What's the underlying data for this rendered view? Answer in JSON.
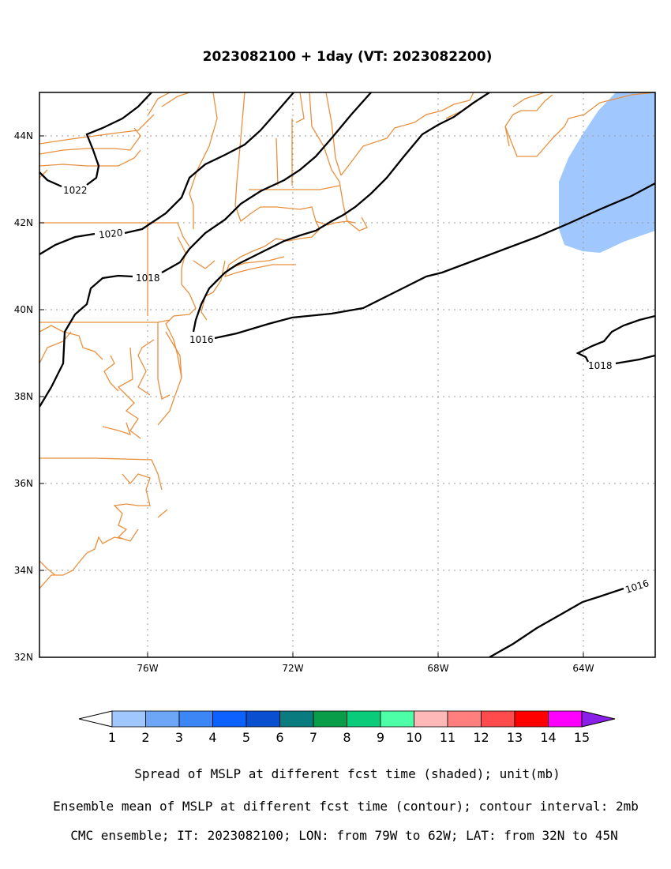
{
  "title": "2023082100 + 1day (VT: 2023082200)",
  "map": {
    "lon_range": [
      -79,
      -62
    ],
    "lat_range": [
      32,
      45
    ],
    "x_ticks": [
      "76W",
      "72W",
      "68W",
      "64W"
    ],
    "y_ticks": [
      "44N",
      "42N",
      "40N",
      "38N",
      "36N",
      "34N",
      "32N"
    ],
    "grid": true,
    "boundary_color": "#e8903e",
    "contour_color": "#000000"
  },
  "contours": [
    {
      "value": 1022,
      "label": "1022"
    },
    {
      "value": 1020,
      "label": "1020"
    },
    {
      "value": 1018,
      "label": "1018"
    },
    {
      "value": 1016,
      "label": "1016"
    },
    {
      "value": 1018,
      "label": "1018",
      "region": "east"
    },
    {
      "value": 1016,
      "label": "1016",
      "region": "southeast"
    }
  ],
  "shaded": [
    {
      "range": "1-2",
      "color": "#a0c8ff",
      "region": "northeast corner"
    }
  ],
  "colorbar": {
    "labels": [
      "1",
      "2",
      "3",
      "4",
      "5",
      "6",
      "7",
      "8",
      "9",
      "10",
      "11",
      "12",
      "13",
      "14",
      "15"
    ],
    "colors": [
      "#a0c8ff",
      "#6ea6f7",
      "#3d86f5",
      "#0c61ff",
      "#0a4fcf",
      "#0a7c80",
      "#099d4a",
      "#0acb7a",
      "#4dffa6",
      "#ffb8b8",
      "#ff7f7f",
      "#ff4b4b",
      "#ff0000",
      "#ff00ff",
      "#8a1fe8"
    ],
    "under_color": "#ffffff",
    "over_color": "#8a1fe8"
  },
  "captions": {
    "line1": "Spread of MSLP at different fcst time (shaded); unit(mb)",
    "line2": "Ensemble mean of MSLP at different fcst time (contour); contour interval: 2mb",
    "line3": "CMC ensemble; IT: 2023082100; LON: from 79W to 62W; LAT: from 32N to 45N"
  }
}
